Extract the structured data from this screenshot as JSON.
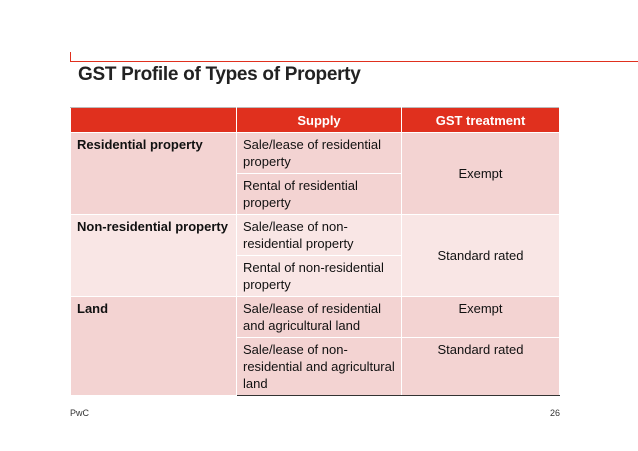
{
  "header": {
    "title": "GST Profile of Types of Property"
  },
  "table": {
    "columns": [
      "Supply",
      "GST treatment"
    ],
    "groups": [
      {
        "property": "Residential property",
        "supplies": [
          "Sale/lease of residential property",
          "Rental of residential property"
        ],
        "treatments": [
          "Exempt"
        ]
      },
      {
        "property": "Non-residential property",
        "supplies": [
          "Sale/lease of non-residential property",
          "Rental of non-residential property"
        ],
        "treatments": [
          "Standard rated"
        ]
      },
      {
        "property": "Land",
        "supplies": [
          "Sale/lease of residential and agricultural land",
          "Sale/lease of non-residential and agricultural land"
        ],
        "treatments": [
          "Exempt",
          "Standard rated"
        ]
      }
    ]
  },
  "footer": {
    "left": "PwC",
    "page": "26"
  }
}
